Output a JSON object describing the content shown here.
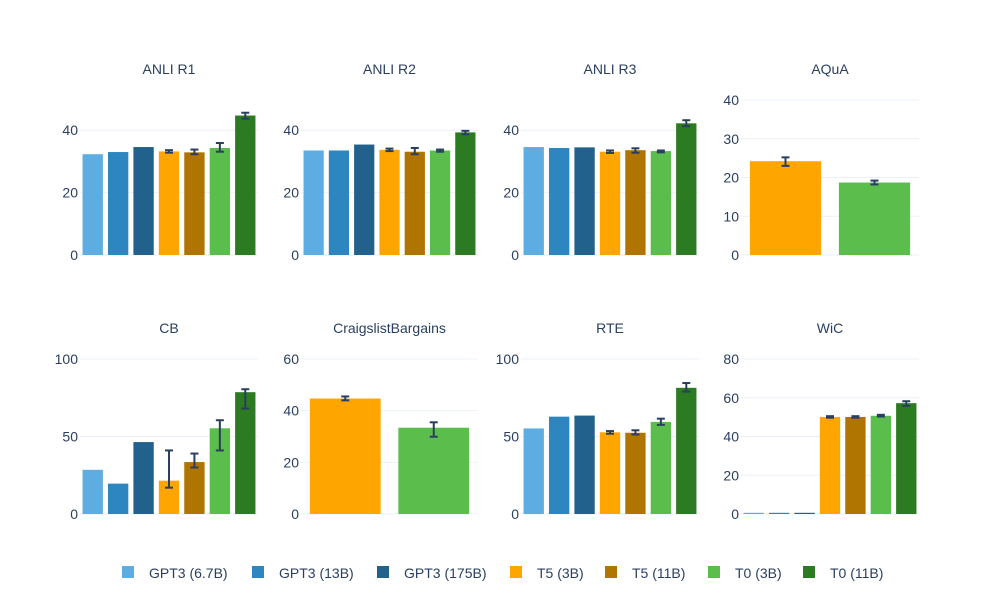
{
  "series_colors": {
    "GPT3 (6.7B)": "#5dade2",
    "GPT3 (13B)": "#2e86c1",
    "GPT3 (175B)": "#21618c",
    "T5 (3B)": "#ffa500",
    "T5 (11B)": "#b07400",
    "T0 (3B)": "#5bbd4c",
    "T0 (11B)": "#2c7a22"
  },
  "legend": [
    "GPT3 (6.7B)",
    "GPT3 (13B)",
    "GPT3 (175B)",
    "T5 (3B)",
    "T5 (11B)",
    "T0 (3B)",
    "T0 (11B)"
  ],
  "chart_data": [
    {
      "type": "bar",
      "title": "ANLI R1",
      "ylim": [
        0,
        50
      ],
      "yticks": [
        0,
        20,
        40
      ],
      "series": [
        {
          "name": "GPT3 (6.7B)",
          "value": 32.3
        },
        {
          "name": "GPT3 (13B)",
          "value": 33.0
        },
        {
          "name": "GPT3 (175B)",
          "value": 34.6
        },
        {
          "name": "T5 (3B)",
          "value": 33.2,
          "err": [
            32.8,
            33.6
          ]
        },
        {
          "name": "T5 (11B)",
          "value": 32.9,
          "err": [
            32.3,
            33.8
          ]
        },
        {
          "name": "T0 (3B)",
          "value": 34.3,
          "err": [
            33.1,
            35.9
          ]
        },
        {
          "name": "T0 (11B)",
          "value": 44.7,
          "err": [
            43.7,
            45.6
          ]
        }
      ]
    },
    {
      "type": "bar",
      "title": "ANLI R2",
      "ylim": [
        0,
        50
      ],
      "yticks": [
        0,
        20,
        40
      ],
      "series": [
        {
          "name": "GPT3 (6.7B)",
          "value": 33.5
        },
        {
          "name": "GPT3 (13B)",
          "value": 33.5
        },
        {
          "name": "GPT3 (175B)",
          "value": 35.4
        },
        {
          "name": "T5 (3B)",
          "value": 33.7,
          "err": [
            33.3,
            34.1
          ]
        },
        {
          "name": "T5 (11B)",
          "value": 33.1,
          "err": [
            32.3,
            34.3
          ]
        },
        {
          "name": "T0 (3B)",
          "value": 33.5,
          "err": [
            33.1,
            33.8
          ]
        },
        {
          "name": "T0 (11B)",
          "value": 39.3,
          "err": [
            38.7,
            39.8
          ]
        }
      ]
    },
    {
      "type": "bar",
      "title": "ANLI R3",
      "ylim": [
        0,
        50
      ],
      "yticks": [
        0,
        20,
        40
      ],
      "series": [
        {
          "name": "GPT3 (6.7B)",
          "value": 34.6
        },
        {
          "name": "GPT3 (13B)",
          "value": 34.3
        },
        {
          "name": "GPT3 (175B)",
          "value": 34.5
        },
        {
          "name": "T5 (3B)",
          "value": 33.1,
          "err": [
            32.7,
            33.5
          ]
        },
        {
          "name": "T5 (11B)",
          "value": 33.6,
          "err": [
            32.8,
            34.2
          ]
        },
        {
          "name": "T0 (3B)",
          "value": 33.3,
          "err": [
            32.9,
            33.5
          ]
        },
        {
          "name": "T0 (11B)",
          "value": 42.2,
          "err": [
            41.3,
            43.2
          ]
        }
      ]
    },
    {
      "type": "bar",
      "title": "AQuA",
      "ylim": [
        0,
        40
      ],
      "yticks": [
        0,
        10,
        20,
        30,
        40
      ],
      "series": [
        {
          "name": "T5 (3B)",
          "value": 24.2,
          "err": [
            23.0,
            25.2
          ]
        },
        {
          "name": "T0 (3B)",
          "value": 18.7,
          "err": [
            18.2,
            19.2
          ]
        }
      ]
    },
    {
      "type": "bar",
      "title": "CB",
      "ylim": [
        0,
        100
      ],
      "yticks": [
        0,
        50,
        100
      ],
      "series": [
        {
          "name": "GPT3 (6.7B)",
          "value": 28.5
        },
        {
          "name": "GPT3 (13B)",
          "value": 19.6
        },
        {
          "name": "GPT3 (175B)",
          "value": 46.4
        },
        {
          "name": "T5 (3B)",
          "value": 21.5,
          "err": [
            17.0,
            41.0
          ]
        },
        {
          "name": "T5 (11B)",
          "value": 33.5,
          "err": [
            30.0,
            39.0
          ]
        },
        {
          "name": "T0 (3B)",
          "value": 55.3,
          "err": [
            41.0,
            60.5
          ]
        },
        {
          "name": "T0 (11B)",
          "value": 78.6,
          "err": [
            68.0,
            80.5
          ]
        }
      ]
    },
    {
      "type": "bar",
      "title": "CraigslistBargains",
      "ylim": [
        0,
        60
      ],
      "yticks": [
        0,
        20,
        40,
        60
      ],
      "series": [
        {
          "name": "T5 (3B)",
          "value": 44.7,
          "err": [
            44.0,
            45.5
          ]
        },
        {
          "name": "T0 (3B)",
          "value": 33.4,
          "err": [
            29.9,
            35.5
          ]
        }
      ]
    },
    {
      "type": "bar",
      "title": "RTE",
      "ylim": [
        0,
        100
      ],
      "yticks": [
        0,
        50,
        100
      ],
      "series": [
        {
          "name": "GPT3 (6.7B)",
          "value": 55.2
        },
        {
          "name": "GPT3 (13B)",
          "value": 62.8
        },
        {
          "name": "GPT3 (175B)",
          "value": 63.5
        },
        {
          "name": "T5 (3B)",
          "value": 52.7,
          "err": [
            51.8,
            53.5
          ]
        },
        {
          "name": "T5 (11B)",
          "value": 52.4,
          "err": [
            51.3,
            54.0
          ]
        },
        {
          "name": "T0 (3B)",
          "value": 59.4,
          "err": [
            57.5,
            61.5
          ]
        },
        {
          "name": "T0 (11B)",
          "value": 81.4,
          "err": [
            79.0,
            84.5
          ]
        }
      ]
    },
    {
      "type": "bar",
      "title": "WiC",
      "ylim": [
        0,
        80
      ],
      "yticks": [
        0,
        20,
        40,
        60,
        80
      ],
      "series": [
        {
          "name": "GPT3 (6.7B)",
          "value": 0.0
        },
        {
          "name": "GPT3 (13B)",
          "value": 0.0
        },
        {
          "name": "GPT3 (175B)",
          "value": 0.0
        },
        {
          "name": "T5 (3B)",
          "value": 50.1,
          "err": [
            49.7,
            50.5
          ]
        },
        {
          "name": "T5 (11B)",
          "value": 50.1,
          "err": [
            49.7,
            50.5
          ]
        },
        {
          "name": "T0 (3B)",
          "value": 50.7,
          "err": [
            50.3,
            51.2
          ]
        },
        {
          "name": "T0 (11B)",
          "value": 57.2,
          "err": [
            55.8,
            58.2
          ]
        }
      ]
    }
  ]
}
